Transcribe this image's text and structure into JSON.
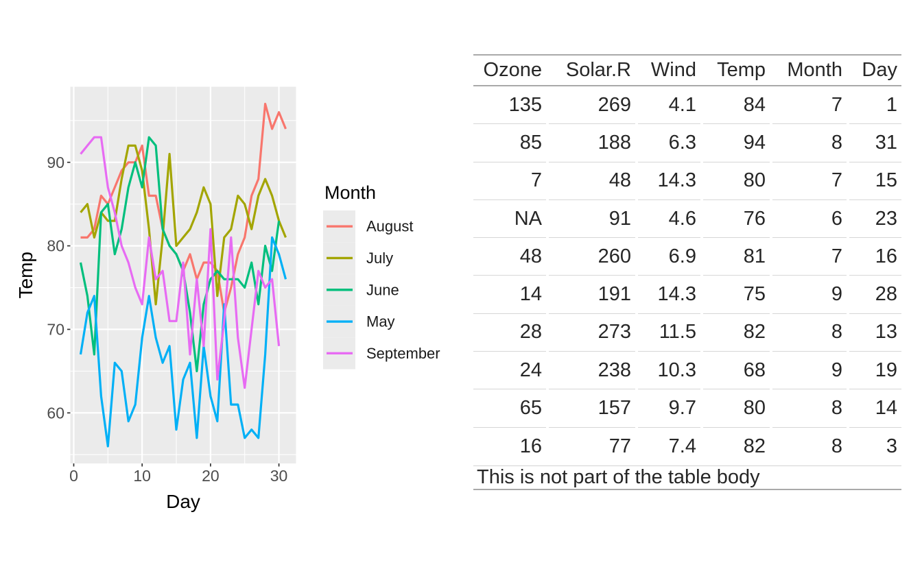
{
  "chart_data": {
    "type": "line",
    "title": "",
    "xlabel": "Day",
    "ylabel": "Temp",
    "xlim": [
      -0.5,
      32.5
    ],
    "ylim": [
      53.95,
      99.05
    ],
    "x_ticks": [
      0,
      10,
      20,
      30
    ],
    "y_ticks": [
      60,
      70,
      80,
      90
    ],
    "x_minor_ticks": [
      5,
      15,
      25
    ],
    "y_minor_ticks": [
      55,
      65,
      75,
      85,
      95
    ],
    "grid": "white major and minor gridlines on gray panel",
    "panel_bg": "#EBEBEB",
    "grid_color": "#FFFFFF",
    "axis_text_color": "#4D4D4D",
    "axis_title_color": "#000000",
    "legend": {
      "title": "Month",
      "position": "right",
      "key_bg": "#EBEBEB"
    },
    "x_definition": "day of month, 1..N per series",
    "series": [
      {
        "name": "August",
        "color": "#F8766D",
        "values": [
          81,
          81,
          82,
          86,
          85,
          87,
          89,
          90,
          90,
          92,
          86,
          86,
          82,
          80,
          79,
          77,
          79,
          76,
          78,
          78,
          77,
          72,
          75,
          79,
          81,
          86,
          88,
          97,
          94,
          96,
          94
        ]
      },
      {
        "name": "July",
        "color": "#A3A500",
        "values": [
          84,
          85,
          81,
          84,
          83,
          83,
          88,
          92,
          92,
          89,
          82,
          73,
          81,
          91,
          80,
          81,
          82,
          84,
          87,
          85,
          74,
          81,
          82,
          86,
          85,
          82,
          86,
          88,
          86,
          83,
          81
        ]
      },
      {
        "name": "June",
        "color": "#00BF7D",
        "values": [
          78,
          74,
          67,
          84,
          85,
          79,
          82,
          87,
          90,
          87,
          93,
          92,
          82,
          80,
          79,
          77,
          72,
          65,
          73,
          76,
          77,
          76,
          76,
          76,
          75,
          78,
          73,
          80,
          77,
          83
        ]
      },
      {
        "name": "May",
        "color": "#00B0F6",
        "values": [
          67,
          72,
          74,
          62,
          56,
          66,
          65,
          59,
          61,
          69,
          74,
          69,
          66,
          68,
          58,
          64,
          66,
          57,
          68,
          62,
          59,
          73,
          61,
          61,
          57,
          58,
          57,
          67,
          81,
          79,
          76
        ]
      },
      {
        "name": "September",
        "color": "#E76BF3",
        "values": [
          91,
          92,
          93,
          93,
          87,
          84,
          80,
          78,
          75,
          73,
          81,
          76,
          77,
          71,
          71,
          78,
          67,
          76,
          68,
          82,
          64,
          71,
          81,
          69,
          63,
          70,
          77,
          75,
          76,
          68
        ]
      }
    ]
  },
  "table": {
    "columns": [
      "Ozone",
      "Solar.R",
      "Wind",
      "Temp",
      "Month",
      "Day"
    ],
    "rows": [
      [
        "135",
        "269",
        "4.1",
        "84",
        "7",
        "1"
      ],
      [
        "85",
        "188",
        "6.3",
        "94",
        "8",
        "31"
      ],
      [
        "7",
        "48",
        "14.3",
        "80",
        "7",
        "15"
      ],
      [
        "NA",
        "91",
        "4.6",
        "76",
        "6",
        "23"
      ],
      [
        "48",
        "260",
        "6.9",
        "81",
        "7",
        "16"
      ],
      [
        "14",
        "191",
        "14.3",
        "75",
        "9",
        "28"
      ],
      [
        "28",
        "273",
        "11.5",
        "82",
        "8",
        "13"
      ],
      [
        "24",
        "238",
        "10.3",
        "68",
        "9",
        "19"
      ],
      [
        "65",
        "157",
        "9.7",
        "80",
        "8",
        "14"
      ],
      [
        "16",
        "77",
        "7.4",
        "82",
        "8",
        "3"
      ]
    ],
    "footer": "This is not part of the table body"
  }
}
